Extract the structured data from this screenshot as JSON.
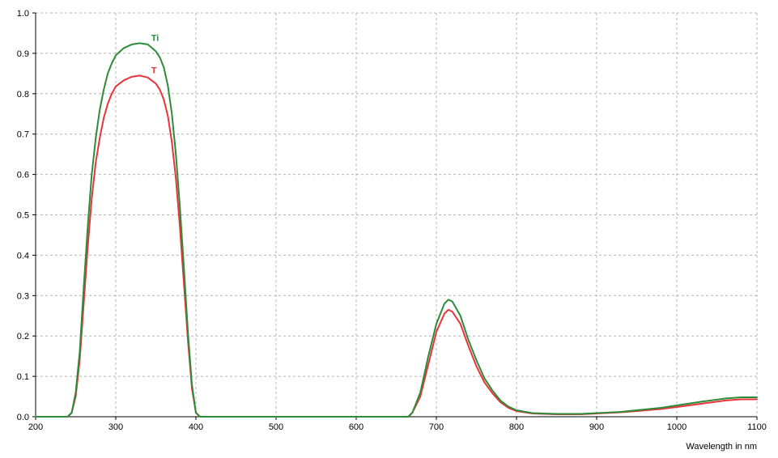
{
  "chart_data": {
    "type": "line",
    "xlabel": "Wavelength in nm",
    "ylabel": "",
    "title": "",
    "xlim": [
      200,
      1100
    ],
    "ylim": [
      0,
      1.0
    ],
    "x_ticks": [
      200,
      300,
      400,
      500,
      600,
      700,
      800,
      900,
      1000,
      1100
    ],
    "y_ticks": [
      0.0,
      0.1,
      0.2,
      0.3,
      0.4,
      0.5,
      0.6,
      0.7,
      0.8,
      0.9,
      1.0
    ],
    "x_tick_labels": [
      "200",
      "300",
      "400",
      "500",
      "600",
      "700",
      "800",
      "900",
      "1000",
      "1100"
    ],
    "y_tick_labels": [
      "0.0",
      "0.1",
      "0.2",
      "0.3",
      "0.4",
      "0.5",
      "0.6",
      "0.7",
      "0.8",
      "0.9",
      "1.0"
    ],
    "grid": true,
    "series": [
      {
        "name": "Ti",
        "color": "#2e8b3a",
        "label_at": [
          330,
          0.925
        ],
        "points": [
          [
            200,
            0.0
          ],
          [
            240,
            0.0
          ],
          [
            245,
            0.01
          ],
          [
            250,
            0.06
          ],
          [
            255,
            0.16
          ],
          [
            260,
            0.32
          ],
          [
            265,
            0.47
          ],
          [
            270,
            0.6
          ],
          [
            275,
            0.69
          ],
          [
            280,
            0.76
          ],
          [
            285,
            0.81
          ],
          [
            290,
            0.85
          ],
          [
            295,
            0.875
          ],
          [
            300,
            0.895
          ],
          [
            310,
            0.913
          ],
          [
            320,
            0.922
          ],
          [
            330,
            0.925
          ],
          [
            340,
            0.922
          ],
          [
            350,
            0.905
          ],
          [
            355,
            0.89
          ],
          [
            360,
            0.865
          ],
          [
            365,
            0.82
          ],
          [
            370,
            0.75
          ],
          [
            375,
            0.65
          ],
          [
            380,
            0.52
          ],
          [
            385,
            0.37
          ],
          [
            390,
            0.21
          ],
          [
            395,
            0.08
          ],
          [
            400,
            0.01
          ],
          [
            405,
            0.0
          ],
          [
            665,
            0.0
          ],
          [
            670,
            0.01
          ],
          [
            680,
            0.06
          ],
          [
            690,
            0.15
          ],
          [
            700,
            0.23
          ],
          [
            710,
            0.28
          ],
          [
            715,
            0.29
          ],
          [
            720,
            0.285
          ],
          [
            730,
            0.25
          ],
          [
            740,
            0.19
          ],
          [
            750,
            0.14
          ],
          [
            760,
            0.095
          ],
          [
            770,
            0.065
          ],
          [
            780,
            0.04
          ],
          [
            790,
            0.025
          ],
          [
            800,
            0.016
          ],
          [
            820,
            0.009
          ],
          [
            850,
            0.007
          ],
          [
            880,
            0.007
          ],
          [
            900,
            0.009
          ],
          [
            930,
            0.012
          ],
          [
            950,
            0.016
          ],
          [
            980,
            0.022
          ],
          [
            1000,
            0.028
          ],
          [
            1030,
            0.037
          ],
          [
            1060,
            0.045
          ],
          [
            1080,
            0.048
          ],
          [
            1100,
            0.048
          ]
        ]
      },
      {
        "name": "T",
        "color": "#e8343a",
        "label_at": [
          330,
          0.845
        ],
        "points": [
          [
            200,
            0.0
          ],
          [
            240,
            0.0
          ],
          [
            245,
            0.01
          ],
          [
            250,
            0.05
          ],
          [
            255,
            0.14
          ],
          [
            260,
            0.28
          ],
          [
            265,
            0.42
          ],
          [
            270,
            0.54
          ],
          [
            275,
            0.63
          ],
          [
            280,
            0.69
          ],
          [
            285,
            0.74
          ],
          [
            290,
            0.775
          ],
          [
            295,
            0.8
          ],
          [
            300,
            0.818
          ],
          [
            310,
            0.833
          ],
          [
            320,
            0.842
          ],
          [
            330,
            0.845
          ],
          [
            340,
            0.84
          ],
          [
            350,
            0.825
          ],
          [
            355,
            0.81
          ],
          [
            360,
            0.785
          ],
          [
            365,
            0.745
          ],
          [
            370,
            0.68
          ],
          [
            375,
            0.59
          ],
          [
            380,
            0.47
          ],
          [
            385,
            0.33
          ],
          [
            390,
            0.19
          ],
          [
            395,
            0.07
          ],
          [
            400,
            0.01
          ],
          [
            405,
            0.0
          ],
          [
            665,
            0.0
          ],
          [
            670,
            0.01
          ],
          [
            680,
            0.05
          ],
          [
            690,
            0.13
          ],
          [
            700,
            0.21
          ],
          [
            710,
            0.255
          ],
          [
            715,
            0.265
          ],
          [
            720,
            0.26
          ],
          [
            730,
            0.23
          ],
          [
            740,
            0.175
          ],
          [
            750,
            0.125
          ],
          [
            760,
            0.085
          ],
          [
            770,
            0.058
          ],
          [
            780,
            0.036
          ],
          [
            790,
            0.022
          ],
          [
            800,
            0.014
          ],
          [
            820,
            0.008
          ],
          [
            850,
            0.006
          ],
          [
            880,
            0.006
          ],
          [
            900,
            0.008
          ],
          [
            930,
            0.011
          ],
          [
            950,
            0.014
          ],
          [
            980,
            0.019
          ],
          [
            1000,
            0.024
          ],
          [
            1030,
            0.032
          ],
          [
            1060,
            0.04
          ],
          [
            1080,
            0.043
          ],
          [
            1100,
            0.043
          ]
        ]
      }
    ]
  },
  "colors": {
    "grid": "#b5b5b5",
    "axis": "#000000",
    "background": "#ffffff"
  }
}
